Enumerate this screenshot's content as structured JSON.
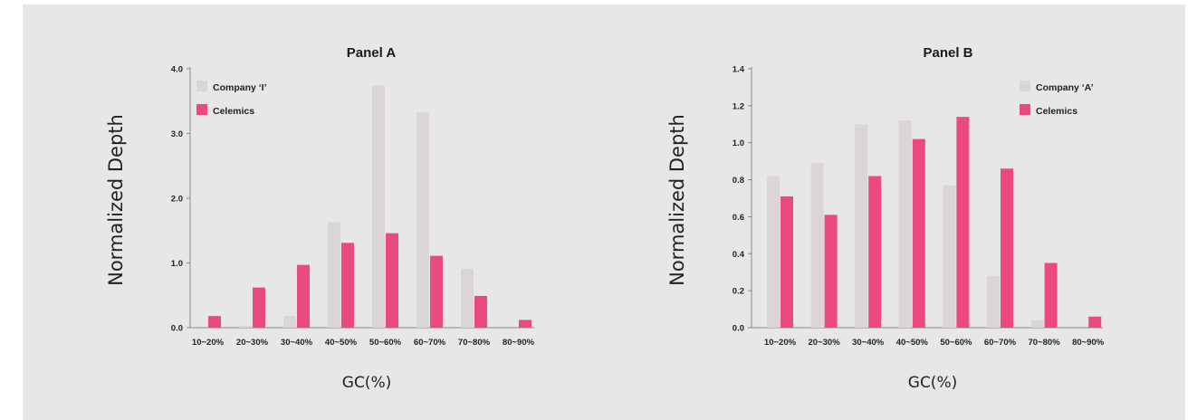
{
  "chart_data": [
    {
      "type": "bar",
      "title": "Panel A",
      "xlabel": "GC(%)",
      "ylabel": "Normalized Depth",
      "ylim": [
        0,
        4.0
      ],
      "yticks": [
        "0.0",
        "1.0",
        "2.0",
        "3.0",
        "4.0"
      ],
      "ytick_values": [
        0,
        1,
        2,
        3,
        4
      ],
      "categories": [
        "10~20%",
        "20~30%",
        "30~40%",
        "40~50%",
        "50~60%",
        "60~70%",
        "70~80%",
        "80~90%"
      ],
      "series": [
        {
          "name": "Company ‘I’",
          "color": "#dcd5d5",
          "values": [
            0.0,
            0.03,
            0.18,
            1.63,
            3.74,
            3.33,
            0.91,
            0.0
          ]
        },
        {
          "name": "Celemics",
          "color": "#ea4a80",
          "values": [
            0.18,
            0.62,
            0.97,
            1.31,
            1.46,
            1.11,
            0.49,
            0.12
          ]
        }
      ],
      "legend": "top-left"
    },
    {
      "type": "bar",
      "title": "Panel B",
      "xlabel": "GC(%)",
      "ylabel": "Normalized Depth",
      "ylim": [
        0,
        1.4
      ],
      "yticks": [
        "0.0",
        "0.2",
        "0.4",
        "0.6",
        "0.8",
        "1.0",
        "1.2",
        "1.4"
      ],
      "ytick_values": [
        0,
        0.2,
        0.4,
        0.6,
        0.8,
        1.0,
        1.2,
        1.4
      ],
      "categories": [
        "10~20%",
        "20~30%",
        "30~40%",
        "40~50%",
        "50~60%",
        "60~70%",
        "70~80%",
        "80~90%"
      ],
      "series": [
        {
          "name": "Company ‘A’",
          "color": "#dcd5d5",
          "values": [
            0.82,
            0.89,
            1.1,
            1.12,
            0.77,
            0.28,
            0.04,
            0.0
          ]
        },
        {
          "name": "Celemics",
          "color": "#ea4a80",
          "values": [
            0.71,
            0.61,
            0.82,
            1.02,
            1.14,
            0.86,
            0.35,
            0.06
          ]
        }
      ],
      "legend": "top-right"
    }
  ]
}
